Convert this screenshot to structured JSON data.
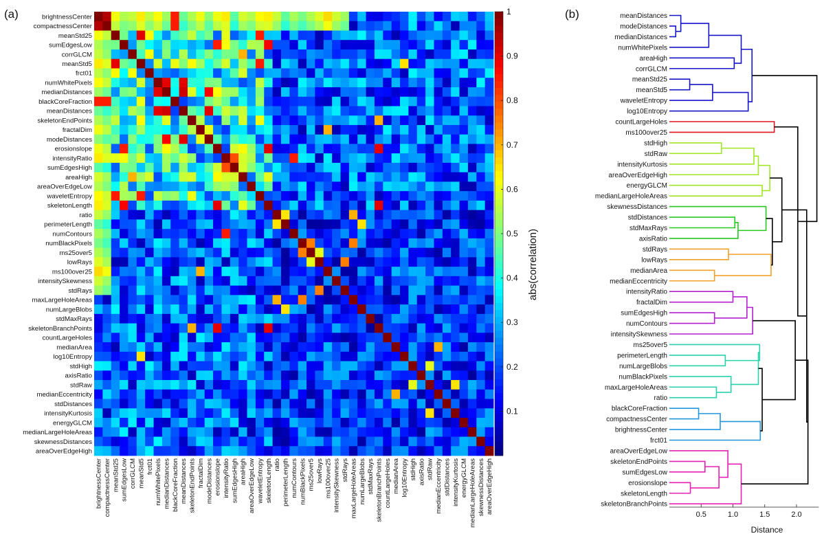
{
  "panel_a_label": "(a)",
  "panel_b_label": "(b)",
  "colors": {
    "dendro_blue": "#1414c8",
    "dendro_red": "#e0141e",
    "dendro_lime": "#a2e626",
    "dendro_green": "#25c81f",
    "dendro_orange": "#f0a028",
    "dendro_purple": "#b41ed2",
    "dendro_teal": "#28d2aa",
    "dendro_sky": "#2096dc",
    "dendro_pink": "#e620b4",
    "dendro_black": "#000000"
  },
  "chart_data": [
    {
      "type": "heatmap",
      "colormap": "jet",
      "colorbar_label": "abs(correlation)",
      "colorbar_ticks": [
        0.1,
        0.2,
        0.3,
        0.4,
        0.5,
        0.6,
        0.7,
        0.8,
        0.9,
        1
      ],
      "zlim": [
        0,
        1
      ],
      "rows": [
        "brightnessCenter",
        "compactnessCenter",
        "meanStd25",
        "sumEdgesLow",
        "corrGLCM",
        "meanStd5",
        "frct01",
        "numWhitePixels",
        "medianDistances",
        "blackCoreFraction",
        "meanDistances",
        "skeletonEndPoints",
        "fractalDim",
        "modeDistances",
        "erosionslope",
        "intensityRatio",
        "sumEdgesHigh",
        "areaHigh",
        "areaOverEdgeLow",
        "waveletEntropy",
        "skeletonLength",
        "ratio",
        "perimeterLength",
        "numContours",
        "numBlackPixels",
        "ms25over5",
        "lowRays",
        "ms100over25",
        "intensitySkewness",
        "stdRays",
        "maxLargeHoleAreas",
        "numLargeBlobs",
        "stdMaxRays",
        "skeletonBranchPoints",
        "countLargeHoles",
        "medianArea",
        "log10Entropy",
        "stdHigh",
        "axisRatio",
        "stdRaw",
        "medianEccentricity",
        "stdDistances",
        "intensityKurtosis",
        "energyGLCM",
        "medianLargeHoleAreas",
        "skewnessDistances",
        "areaOverEdgeHigh"
      ],
      "columns": [
        "brightnessCenter",
        "compactnessCenter",
        "meanStd25",
        "sumEdgesLow",
        "corrGLCM",
        "meanStd5",
        "frct01",
        "numWhitePixels",
        "medianDistances",
        "blackCoreFraction",
        "meanDistances",
        "skeletonEndPoints",
        "fractalDim",
        "modeDistances",
        "erosionslope",
        "intensityRatio",
        "sumEdgesHigh",
        "areaHigh",
        "areaOverEdgeLow",
        "waveletEntropy",
        "skeletonLength",
        "ratio",
        "perimeterLength",
        "numContours",
        "numBlackPixels",
        "ms25over5",
        "lowRays",
        "ms100over25",
        "intensitySkewness",
        "stdRays",
        "maxLargeHoleAreas",
        "numLargeBlobs",
        "stdMaxRays",
        "skeletonBranchPoints",
        "countLargeHoles",
        "medianArea",
        "log10Entropy",
        "stdHigh",
        "axisRatio",
        "stdRaw",
        "medianEccentricity",
        "stdDistances",
        "intensityKurtosis",
        "energyGLCM",
        "medianLargeHoleAreas",
        "skewnessDistances",
        "areaOverEdgeHigh"
      ],
      "diagonal": 1,
      "notable_cells": [
        {
          "pair": [
            "brightnessCenter",
            "compactnessCenter"
          ],
          "value": 0.95
        },
        {
          "pair": [
            "brightnessCenter",
            "blackCoreFraction"
          ],
          "value": 0.85
        },
        {
          "pair": [
            "compactnessCenter",
            "blackCoreFraction"
          ],
          "value": 0.85
        },
        {
          "pair": [
            "numWhitePixels",
            "medianDistances"
          ],
          "value": 0.9
        },
        {
          "pair": [
            "numWhitePixels",
            "meanDistances"
          ],
          "value": 0.9
        },
        {
          "pair": [
            "medianDistances",
            "meanDistances"
          ],
          "value": 0.92
        },
        {
          "pair": [
            "meanDistances",
            "modeDistances"
          ],
          "value": 0.9
        },
        {
          "pair": [
            "medianDistances",
            "modeDistances"
          ],
          "value": 0.88
        },
        {
          "pair": [
            "meanStd25",
            "meanStd5"
          ],
          "value": 0.9
        },
        {
          "pair": [
            "meanStd25",
            "waveletEntropy"
          ],
          "value": 0.85
        },
        {
          "pair": [
            "meanStd5",
            "waveletEntropy"
          ],
          "value": 0.85
        },
        {
          "pair": [
            "corrGLCM",
            "areaHigh"
          ],
          "value": 0.7
        },
        {
          "pair": [
            "sumEdgesLow",
            "skeletonLength"
          ],
          "value": 0.88
        },
        {
          "pair": [
            "sumEdgesLow",
            "erosionslope"
          ],
          "value": 0.85
        },
        {
          "pair": [
            "skeletonEndPoints",
            "skeletonBranchPoints"
          ],
          "value": 0.7
        },
        {
          "pair": [
            "erosionslope",
            "skeletonBranchPoints"
          ],
          "value": 0.9
        },
        {
          "pair": [
            "skeletonLength",
            "skeletonBranchPoints"
          ],
          "value": 0.9
        },
        {
          "pair": [
            "erosionslope",
            "skeletonLength"
          ],
          "value": 0.9
        },
        {
          "pair": [
            "intensityRatio",
            "numContours"
          ],
          "value": 0.85
        },
        {
          "pair": [
            "sumEdgesHigh",
            "intensityRatio"
          ],
          "value": 0.8
        },
        {
          "pair": [
            "ratio",
            "maxLargeHoleAreas"
          ],
          "value": 0.7
        },
        {
          "pair": [
            "ratio",
            "perimeterLength"
          ],
          "value": 0.65
        },
        {
          "pair": [
            "perimeterLength",
            "numLargeBlobs"
          ],
          "value": 0.65
        },
        {
          "pair": [
            "numBlackPixels",
            "maxLargeHoleAreas"
          ],
          "value": 0.75
        },
        {
          "pair": [
            "numBlackPixels",
            "ms25over5"
          ],
          "value": 0.75
        },
        {
          "pair": [
            "ms25over5",
            "lowRays"
          ],
          "value": 0.6
        },
        {
          "pair": [
            "lowRays",
            "stdRays"
          ],
          "value": 0.75
        },
        {
          "pair": [
            "medianArea",
            "medianEccentricity"
          ],
          "value": 0.7
        },
        {
          "pair": [
            "stdHigh",
            "stdRaw"
          ],
          "value": 0.6
        },
        {
          "pair": [
            "intensityKurtosis",
            "stdRaw"
          ],
          "value": 0.65
        },
        {
          "pair": [
            "fractalDim",
            "ms100over25"
          ],
          "value": 0.7
        },
        {
          "pair": [
            "log10Entropy",
            "meanStd5"
          ],
          "value": 0.65
        }
      ]
    },
    {
      "type": "dendrogram",
      "xlabel": "Distance",
      "xticks": [
        0.5,
        1.0,
        1.5,
        2.0
      ],
      "xlim": [
        0,
        2.35
      ],
      "leaves": [
        "meanDistances",
        "modeDistances",
        "medianDistances",
        "numWhitePixels",
        "areaHigh",
        "corrGLCM",
        "meanStd25",
        "meanStd5",
        "waveletEntropy",
        "log10Entropy",
        "countLargeHoles",
        "ms100over25",
        "stdHigh",
        "stdRaw",
        "intensityKurtosis",
        "areaOverEdgeHigh",
        "energyGLCM",
        "medianLargeHoleAreas",
        "skewnessDistances",
        "stdDistances",
        "stdMaxRays",
        "axisRatio",
        "stdRays",
        "lowRays",
        "medianArea",
        "medianEccentricity",
        "intensityRatio",
        "fractalDim",
        "sumEdgesHigh",
        "numContours",
        "intensitySkewness",
        "ms25over5",
        "perimeterLength",
        "numLargeBlobs",
        "numBlackPixels",
        "maxLargeHoleAreas",
        "ratio",
        "blackCoreFraction",
        "compactnessCenter",
        "brightnessCenter",
        "frct01",
        "areaOverEdgeLow",
        "skeletonEndPoints",
        "sumEdgesLow",
        "erosionslope",
        "skeletonLength",
        "skeletonBranchPoints"
      ],
      "merges": [
        {
          "a": "L1",
          "b": "L2",
          "height": 0.1,
          "id": "M1",
          "color": "dendro_blue"
        },
        {
          "a": "L0",
          "b": "M1",
          "height": 0.18,
          "id": "M2",
          "color": "dendro_blue"
        },
        {
          "a": "M2",
          "b": "L3",
          "height": 0.62,
          "id": "M3",
          "color": "dendro_blue"
        },
        {
          "a": "L4",
          "b": "L5",
          "height": 1.02,
          "id": "M4",
          "color": "dendro_blue"
        },
        {
          "a": "M3",
          "b": "M4",
          "height": 1.13,
          "id": "M5",
          "color": "dendro_blue"
        },
        {
          "a": "L6",
          "b": "L7",
          "height": 0.32,
          "id": "M6",
          "color": "dendro_blue"
        },
        {
          "a": "M6",
          "b": "L8",
          "height": 0.68,
          "id": "M7",
          "color": "dendro_blue"
        },
        {
          "a": "M7",
          "b": "L9",
          "height": 1.24,
          "id": "M8",
          "color": "dendro_blue"
        },
        {
          "a": "M5",
          "b": "M8",
          "height": 1.3,
          "id": "M9",
          "color": "dendro_blue"
        },
        {
          "a": "L10",
          "b": "L11",
          "height": 1.65,
          "id": "M10",
          "color": "dendro_red"
        },
        {
          "a": "L12",
          "b": "L13",
          "height": 0.82,
          "id": "M11",
          "color": "dendro_lime"
        },
        {
          "a": "M11",
          "b": "L14",
          "height": 1.33,
          "id": "M12",
          "color": "dendro_lime"
        },
        {
          "a": "M12",
          "b": "L15",
          "height": 1.4,
          "id": "M13",
          "color": "dendro_lime"
        },
        {
          "a": "L16",
          "b": "L17",
          "height": 1.46,
          "id": "M14",
          "color": "dendro_lime"
        },
        {
          "a": "M13",
          "b": "M14",
          "height": 1.58,
          "id": "M15",
          "color": "dendro_lime"
        },
        {
          "a": "L19",
          "b": "L20",
          "height": 1.03,
          "id": "M16",
          "color": "dendro_green"
        },
        {
          "a": "M16",
          "b": "L21",
          "height": 1.08,
          "id": "M17",
          "color": "dendro_green"
        },
        {
          "a": "L18",
          "b": "M17",
          "height": 1.52,
          "id": "M18",
          "color": "dendro_green"
        },
        {
          "a": "L22",
          "b": "L23",
          "height": 0.93,
          "id": "M19",
          "color": "dendro_orange"
        },
        {
          "a": "L24",
          "b": "L25",
          "height": 0.71,
          "id": "M20",
          "color": "dendro_orange"
        },
        {
          "a": "M19",
          "b": "M20",
          "height": 1.6,
          "id": "M21",
          "color": "dendro_orange"
        },
        {
          "a": "M18",
          "b": "M21",
          "height": 1.62,
          "id": "M22",
          "color": "dendro_black"
        },
        {
          "a": "M15",
          "b": "M22",
          "height": 1.77,
          "id": "M23",
          "color": "dendro_black"
        },
        {
          "a": "L26",
          "b": "L27",
          "height": 1.0,
          "id": "M24",
          "color": "dendro_purple"
        },
        {
          "a": "L28",
          "b": "L29",
          "height": 0.71,
          "id": "M25",
          "color": "dendro_purple"
        },
        {
          "a": "M24",
          "b": "M25",
          "height": 1.22,
          "id": "M26",
          "color": "dendro_purple"
        },
        {
          "a": "M26",
          "b": "L30",
          "height": 1.31,
          "id": "M27",
          "color": "dendro_purple"
        },
        {
          "a": "L32",
          "b": "L33",
          "height": 0.88,
          "id": "M28",
          "color": "dendro_teal"
        },
        {
          "a": "L31",
          "b": "M28",
          "height": 1.42,
          "id": "M29",
          "color": "dendro_teal"
        },
        {
          "a": "L35",
          "b": "L36",
          "height": 0.74,
          "id": "M30",
          "color": "dendro_teal"
        },
        {
          "a": "L34",
          "b": "M30",
          "height": 0.97,
          "id": "M31",
          "color": "dendro_teal"
        },
        {
          "a": "M29",
          "b": "M31",
          "height": 1.4,
          "id": "M32",
          "color": "dendro_teal"
        },
        {
          "a": "L37",
          "b": "L38",
          "height": 0.46,
          "id": "M33",
          "color": "dendro_sky"
        },
        {
          "a": "M33",
          "b": "L39",
          "height": 0.8,
          "id": "M34",
          "color": "dendro_sky"
        },
        {
          "a": "M34",
          "b": "L40",
          "height": 1.43,
          "id": "M35",
          "color": "dendro_sky"
        },
        {
          "a": "M32",
          "b": "M35",
          "height": 1.46,
          "id": "M36",
          "color": "dendro_black"
        },
        {
          "a": "M27",
          "b": "M36",
          "height": 1.98,
          "id": "M37",
          "color": "dendro_black"
        },
        {
          "a": "L42",
          "b": "L43",
          "height": 0.56,
          "id": "M38",
          "color": "dendro_pink"
        },
        {
          "a": "L44",
          "b": "L45",
          "height": 0.33,
          "id": "M39",
          "color": "dendro_pink"
        },
        {
          "a": "M38",
          "b": "M39",
          "height": 0.78,
          "id": "M40",
          "color": "dendro_pink"
        },
        {
          "a": "L41",
          "b": "M40",
          "height": 0.92,
          "id": "M41",
          "color": "dendro_pink"
        },
        {
          "a": "M41",
          "b": "L46",
          "height": 1.13,
          "id": "M42",
          "color": "dendro_pink"
        },
        {
          "a": "M37",
          "b": "M42",
          "height": 2.18,
          "id": "M43",
          "color": "dendro_black"
        },
        {
          "a": "M23",
          "b": "M43",
          "height": 2.16,
          "id": "M44",
          "color": "dendro_black"
        },
        {
          "a": "M10",
          "b": "M44",
          "height": 2.02,
          "id": "M45",
          "color": "dendro_black"
        },
        {
          "a": "M9",
          "b": "M45",
          "height": 2.32,
          "id": "M46",
          "color": "dendro_black"
        }
      ]
    }
  ]
}
